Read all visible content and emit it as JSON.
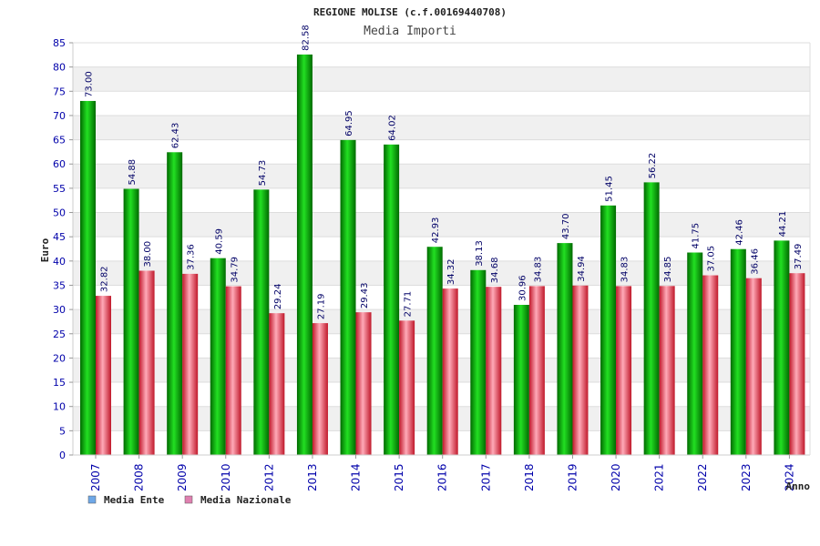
{
  "chart_data": {
    "type": "bar",
    "title": "REGIONE MOLISE (c.f.00169440708)",
    "subtitle": "Media Importi",
    "xlabel": "Anno",
    "ylabel": "Euro",
    "ylim": [
      0,
      85
    ],
    "yticks": [
      0,
      5,
      10,
      15,
      20,
      25,
      30,
      35,
      40,
      45,
      50,
      55,
      60,
      65,
      70,
      75,
      80,
      85
    ],
    "grid": true,
    "legend_position": "bottom-left",
    "categories": [
      "2007",
      "2008",
      "2009",
      "2010",
      "2012",
      "2013",
      "2014",
      "2015",
      "2016",
      "2017",
      "2018",
      "2019",
      "2020",
      "2021",
      "2022",
      "2023",
      "2024"
    ],
    "series": [
      {
        "name": "Media Ente",
        "color": "#00aa00",
        "legend_color": "#6fa8e8",
        "values": [
          73.0,
          54.88,
          62.43,
          40.59,
          54.73,
          82.58,
          64.95,
          64.02,
          42.93,
          38.13,
          30.96,
          43.7,
          51.45,
          56.22,
          41.75,
          42.46,
          44.21
        ],
        "labels": [
          "73.00",
          "54.88",
          "62.43",
          "40.59",
          "54.73",
          "82.58",
          "64.95",
          "64.02",
          "42.93",
          "38.13",
          "30.96",
          "43.70",
          "51.45",
          "56.22",
          "41.75",
          "42.46",
          "44.21"
        ]
      },
      {
        "name": "Media Nazionale",
        "color": "#e03040",
        "legend_color": "#e080b0",
        "values": [
          32.82,
          38.0,
          37.36,
          34.79,
          29.24,
          27.19,
          29.43,
          27.71,
          34.32,
          34.68,
          34.83,
          34.94,
          34.83,
          34.85,
          37.05,
          36.46,
          37.49
        ],
        "labels": [
          "32.82",
          "38.00",
          "37.36",
          "34.79",
          "29.24",
          "27.19",
          "29.43",
          "27.71",
          "34.32",
          "34.68",
          "34.83",
          "34.94",
          "34.83",
          "34.85",
          "37.05",
          "36.46",
          "37.49"
        ]
      }
    ]
  }
}
